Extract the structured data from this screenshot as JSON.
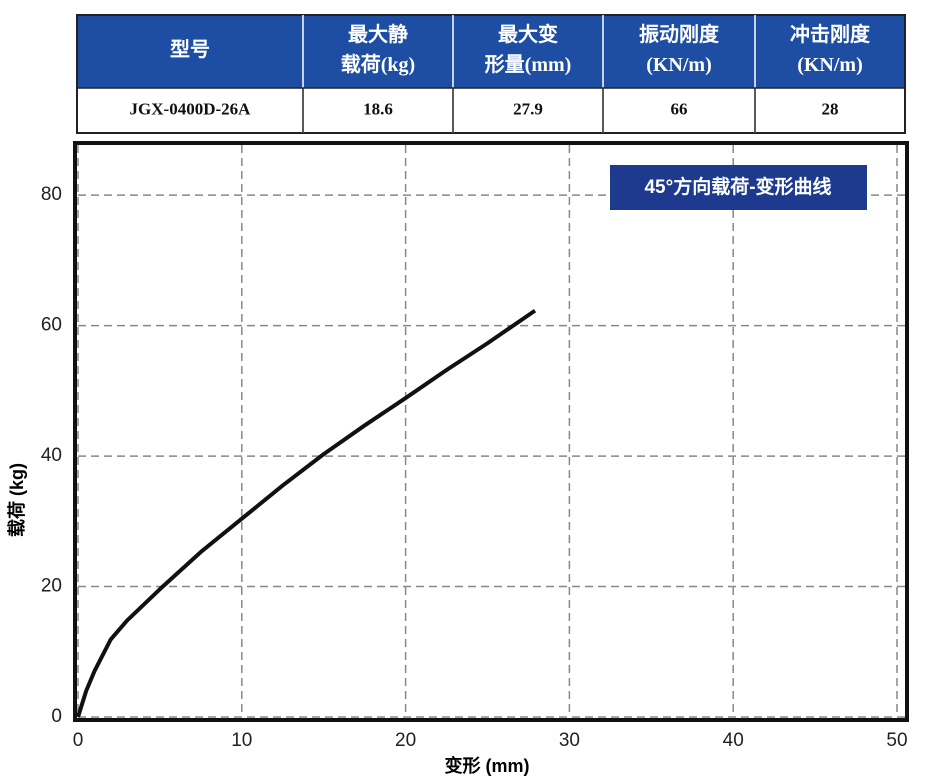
{
  "table": {
    "header": [
      [
        "型号"
      ],
      [
        "最大静",
        "载荷(kg)"
      ],
      [
        "最大变",
        "形量(mm)"
      ],
      [
        "振动刚度",
        "(KN/m)"
      ],
      [
        "冲击刚度",
        "(KN/m)"
      ]
    ],
    "rows": [
      [
        "JGX-0400D-26A",
        "18.6",
        "27.9",
        "66",
        "28"
      ]
    ]
  },
  "chart_data": {
    "type": "line",
    "title": "45°方向载荷-变形曲线",
    "x_label": "变形 (mm)",
    "y_label": "载荷 (kg)",
    "x": [
      0,
      0.5,
      1,
      2,
      3,
      5,
      7.5,
      10,
      12.5,
      15,
      17.5,
      20,
      22.5,
      25,
      27.9
    ],
    "values": [
      0,
      4,
      7,
      11.9,
      14.8,
      19.6,
      25.3,
      30.4,
      35.5,
      40.3,
      44.7,
      48.9,
      53.2,
      57.3,
      62.3
    ],
    "color": "#111111",
    "xlim": [
      0,
      50
    ],
    "xticks": [
      0,
      10,
      20,
      30,
      40,
      50
    ],
    "ylim": [
      0,
      88
    ],
    "yticks": [
      0,
      20,
      40,
      60,
      80
    ],
    "grid": true
  }
}
